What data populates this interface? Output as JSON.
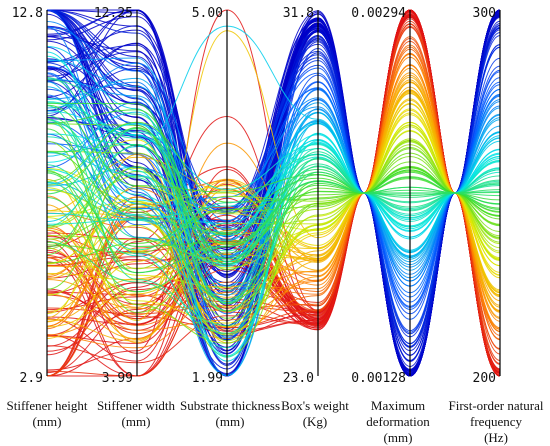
{
  "chart_data": {
    "type": "parallel_coordinates",
    "color_encoding": "First-order natural frequency (blue = high, red = low)",
    "line_count": 220,
    "axes": [
      {
        "name": "Stiffener height",
        "unit": "(mm)",
        "max_label": "12.8",
        "min_label": "2.9",
        "max": 12.8,
        "min": 2.9
      },
      {
        "name": "Stiffener width",
        "unit": "(mm)",
        "max_label": "12.25",
        "min_label": "3.99",
        "max": 12.25,
        "min": 3.99
      },
      {
        "name": "Substrate thickness",
        "unit": "(mm)",
        "max_label": "5.00",
        "min_label": "1.99",
        "max": 5.0,
        "min": 1.99
      },
      {
        "name": "Box's weight",
        "unit": "(Kg)",
        "max_label": "31.8",
        "min_label": "23.0",
        "max": 31.8,
        "min": 23.0
      },
      {
        "name": "Maximum deformation",
        "unit": "(mm)",
        "max_label": "0.00294",
        "min_label": "0.00128",
        "max": 0.00294,
        "min": 0.00128
      },
      {
        "name": "First-order natural frequency",
        "unit": "(Hz)",
        "max_label": "300",
        "min_label": "200",
        "max": 300,
        "min": 200
      }
    ],
    "grid": false,
    "legend": "none"
  }
}
